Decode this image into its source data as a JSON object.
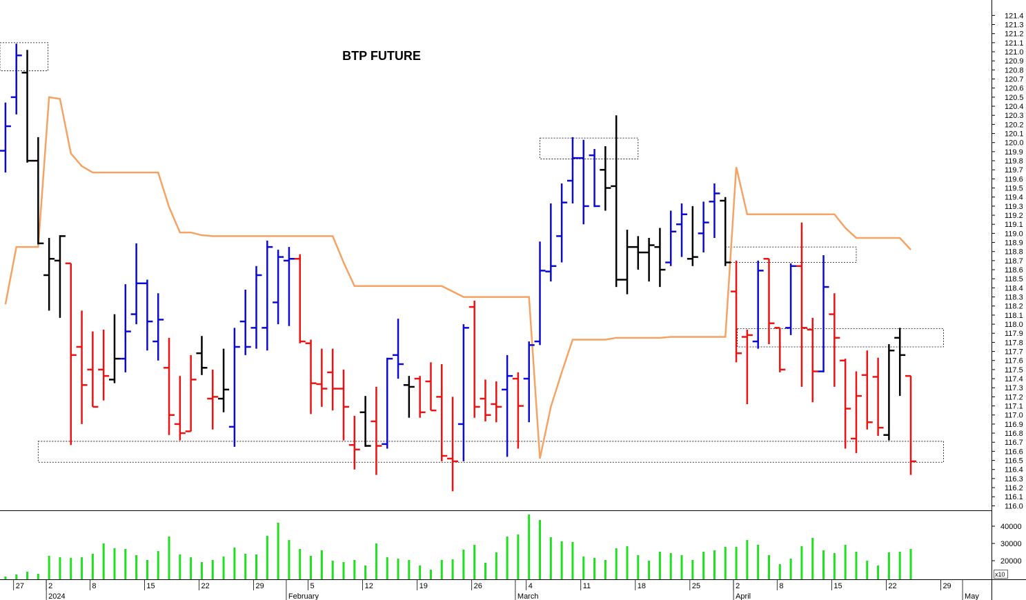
{
  "chart_data": [
    {
      "type": "ohlc",
      "title": "BTP FUTURE",
      "xlim": [
        -0.5,
        90.4
      ],
      "ylim": [
        115.95,
        121.57
      ],
      "yticks": [
        {
          "value": 116,
          "label": "116.0"
        },
        116.1,
        116.2,
        116.3,
        116.4,
        116.5,
        116.6,
        116.7,
        116.8,
        116.9,
        {
          "value": 117,
          "label": "117.0"
        },
        117.1,
        117.2,
        117.3,
        117.4,
        117.5,
        117.6,
        117.7,
        117.8,
        117.9,
        {
          "value": 118,
          "label": "118.0"
        },
        118.1,
        118.2,
        118.3,
        118.4,
        118.5,
        118.6,
        118.7,
        118.8,
        118.9,
        {
          "value": 119,
          "label": "119.0"
        },
        119.1,
        119.2,
        119.3,
        119.4,
        119.5,
        119.6,
        119.7,
        119.8,
        119.9,
        {
          "value": 120,
          "label": "120.0"
        },
        120.1,
        120.2,
        120.3,
        120.4,
        120.5,
        120.6,
        120.7,
        120.8,
        120.9,
        {
          "value": 121,
          "label": "121.0"
        },
        121.1,
        121.2,
        121.3,
        121.4
      ],
      "open": [
        119.91,
        120.5,
        120.77,
        119.8,
        118.54,
        118.7,
        118.67,
        117.75,
        117.5,
        117.5,
        117.39,
        117.62,
        118.11,
        118.45,
        117.81,
        117.52,
        116.9,
        116.82,
        117.68,
        117.18,
        117.18,
        116.87,
        118.03,
        117.96,
        117.96,
        118.24,
        118.7,
        118.72,
        117.79,
        117.34,
        117.47,
        117.29,
        116.67,
        117.03,
        116.93,
        116.68,
        117.66,
        117.33,
        117.4,
        117.37,
        117.2,
        116.52,
        116.9,
        118.19,
        117.18,
        117.12,
        117.28,
        117.4,
        117.4,
        117.81,
        118.58,
        118.97,
        119.58,
        119.83,
        119.86,
        119.7,
        119.52,
        118.49,
        118.85,
        118.79,
        118.85,
        118.68,
        119.1,
        118.72,
        119.0,
        119.35,
        119.36,
        118.36,
        117.86,
        117.81,
        118.72,
        117.96,
        117.96,
        118.64,
        117.94,
        117.48,
        118.11,
        117.6,
        116.74,
        117.44,
        117.42,
        116.78,
        117.85,
        117.43
      ],
      "high": [
        120.44,
        121.09,
        121.02,
        120.06,
        118.95,
        118.98,
        118.67,
        118.15,
        117.92,
        117.94,
        118.11,
        118.44,
        118.89,
        118.49,
        118.34,
        117.85,
        117.43,
        117.66,
        117.87,
        117.5,
        117.73,
        117.96,
        118.38,
        118.64,
        118.92,
        118.82,
        118.85,
        118.77,
        117.83,
        117.73,
        117.73,
        117.5,
        116.99,
        117.21,
        117.31,
        117.63,
        118.06,
        117.43,
        117.43,
        117.58,
        117.56,
        117.2,
        118.0,
        118.26,
        117.39,
        117.37,
        117.66,
        117.47,
        117.81,
        118.91,
        119.33,
        119.55,
        120.06,
        120.03,
        119.93,
        119.96,
        120.3,
        119.04,
        118.97,
        118.95,
        119.06,
        119.25,
        119.33,
        119.3,
        119.35,
        119.55,
        119.4,
        118.7,
        117.94,
        118.7,
        118.72,
        117.96,
        118.67,
        119.12,
        118.07,
        118.76,
        118.34,
        117.62,
        117.48,
        117.71,
        117.63,
        117.78,
        117.96,
        117.43
      ],
      "low": [
        119.67,
        120.31,
        119.78,
        118.88,
        118.15,
        118.07,
        116.67,
        116.9,
        117.09,
        117.16,
        117.35,
        117.47,
        118.0,
        117.71,
        117.6,
        116.78,
        116.72,
        116.82,
        117.44,
        116.84,
        117.03,
        116.65,
        117.66,
        117.73,
        117.71,
        118.0,
        117.98,
        117.79,
        117.01,
        117.09,
        117.05,
        116.72,
        116.4,
        116.65,
        116.34,
        116.63,
        117.4,
        116.97,
        116.97,
        117.05,
        116.49,
        116.16,
        116.49,
        116.97,
        116.93,
        116.92,
        116.54,
        116.63,
        116.92,
        117.77,
        118.47,
        118.68,
        119.33,
        119.1,
        119.29,
        119.25,
        118.41,
        118.33,
        118.6,
        118.47,
        118.41,
        118.64,
        118.74,
        118.64,
        118.79,
        118.95,
        118.64,
        117.58,
        117.12,
        117.73,
        117.78,
        117.47,
        117.88,
        117.31,
        117.14,
        117.47,
        117.31,
        116.63,
        116.58,
        116.84,
        116.77,
        116.72,
        117.21,
        116.34
      ],
      "close": [
        120.18,
        120.96,
        119.8,
        118.89,
        118.72,
        118.97,
        117.66,
        117.33,
        117.09,
        117.43,
        117.62,
        117.92,
        118.45,
        118.03,
        118.05,
        117.0,
        116.8,
        117.39,
        117.52,
        117.2,
        117.28,
        117.75,
        117.75,
        118.54,
        118.85,
        118.74,
        118.72,
        117.81,
        117.35,
        117.29,
        117.29,
        117.09,
        116.62,
        116.66,
        116.66,
        117.62,
        117.56,
        117.31,
        117.03,
        117.05,
        116.55,
        116.49,
        117.96,
        117.09,
        117.0,
        117.09,
        117.43,
        117.1,
        117.77,
        118.59,
        118.64,
        119.34,
        119.83,
        119.3,
        119.3,
        119.5,
        118.49,
        118.85,
        118.79,
        118.87,
        118.6,
        119.02,
        119.21,
        118.74,
        119.12,
        119.44,
        118.68,
        117.68,
        117.88,
        118.59,
        118.01,
        117.5,
        118.64,
        117.96,
        117.48,
        118.41,
        117.85,
        117.07,
        117.21,
        116.92,
        116.86,
        117.71,
        117.66,
        116.49
      ],
      "colors": [
        "#0a0ad2",
        "#0a0ad2",
        "#000000",
        "#000000",
        "#000000",
        "#000000",
        "#ee1111",
        "#ee1111",
        "#ee1111",
        "#ee1111",
        "#000000",
        "#0a0ad2",
        "#0a0ad2",
        "#0a0ad2",
        "#0a0ad2",
        "#ee1111",
        "#ee1111",
        "#ee1111",
        "#000000",
        "#ee1111",
        "#000000",
        "#0a0ad2",
        "#0a0ad2",
        "#0a0ad2",
        "#0a0ad2",
        "#0a0ad2",
        "#0a0ad2",
        "#ee1111",
        "#ee1111",
        "#ee1111",
        "#ee1111",
        "#ee1111",
        "#ee1111",
        "#000000",
        "#ee1111",
        "#0a0ad2",
        "#0a0ad2",
        "#000000",
        "#ee1111",
        "#ee1111",
        "#ee1111",
        "#ee1111",
        "#0a0ad2",
        "#ee1111",
        "#ee1111",
        "#ee1111",
        "#0a0ad2",
        "#ee1111",
        "#0a0ad2",
        "#0a0ad2",
        "#0a0ad2",
        "#0a0ad2",
        "#0a0ad2",
        "#0a0ad2",
        "#0a0ad2",
        "#000000",
        "#000000",
        "#000000",
        "#000000",
        "#000000",
        "#000000",
        "#0a0ad2",
        "#0a0ad2",
        "#000000",
        "#0a0ad2",
        "#0a0ad2",
        "#000000",
        "#ee1111",
        "#ee1111",
        "#0a0ad2",
        "#ee1111",
        "#ee1111",
        "#0a0ad2",
        "#ee1111",
        "#ee1111",
        "#0a0ad2",
        "#ee1111",
        "#ee1111",
        "#ee1111",
        "#ee1111",
        "#ee1111",
        "#000000",
        "#000000",
        "#ee1111"
      ],
      "line": {
        "color": "#f6a263",
        "values": [
          118.22,
          118.85,
          118.85,
          118.85,
          120.5,
          120.48,
          119.88,
          119.74,
          119.67,
          119.67,
          119.67,
          119.67,
          119.67,
          119.67,
          119.67,
          119.29,
          119.01,
          119.01,
          118.98,
          118.97,
          118.97,
          118.97,
          118.97,
          118.97,
          118.97,
          118.97,
          118.97,
          118.97,
          118.97,
          118.97,
          118.97,
          118.68,
          118.42,
          118.42,
          118.42,
          118.42,
          118.42,
          118.42,
          118.42,
          118.42,
          118.42,
          118.36,
          118.3,
          118.3,
          118.3,
          118.3,
          118.3,
          118.3,
          118.3,
          116.52,
          117.09,
          117.47,
          117.83,
          117.83,
          117.83,
          117.83,
          117.85,
          117.85,
          117.85,
          117.85,
          117.85,
          117.86,
          117.86,
          117.86,
          117.86,
          117.86,
          117.86,
          119.73,
          119.21,
          119.21,
          119.21,
          119.21,
          119.21,
          119.21,
          119.21,
          119.21,
          119.21,
          119.06,
          118.95,
          118.95,
          118.95,
          118.95,
          118.95,
          118.82
        ]
      },
      "zones": [
        {
          "from": -0.5,
          "to": 3.9,
          "low": 120.79,
          "high": 121.1
        },
        {
          "from": 49,
          "to": 58,
          "low": 119.82,
          "high": 120.05
        },
        {
          "from": 3,
          "to": 86,
          "low": 116.48,
          "high": 116.71
        },
        {
          "from": 66,
          "to": 78,
          "low": 118.68,
          "high": 118.85
        },
        {
          "from": 67.1,
          "to": 86,
          "low": 117.75,
          "high": 117.95
        }
      ]
    },
    {
      "type": "bar",
      "color": "#1fe01f",
      "y_label": "x10",
      "xlim": [
        -0.5,
        90.4
      ],
      "ylim": [
        9200,
        48400
      ],
      "yticks": [
        20000,
        30000,
        40000
      ],
      "values": [
        10800,
        12000,
        13600,
        12400,
        22800,
        22000,
        21600,
        22000,
        24000,
        30000,
        27200,
        26800,
        23200,
        20400,
        25600,
        34000,
        23600,
        22000,
        19200,
        20400,
        22400,
        27600,
        24000,
        23600,
        34400,
        42000,
        32000,
        26800,
        22800,
        26000,
        20000,
        19200,
        20400,
        17200,
        30000,
        22000,
        21200,
        20400,
        17200,
        14800,
        20400,
        20800,
        26400,
        29200,
        18800,
        24800,
        34000,
        35200,
        46800,
        43600,
        33600,
        31200,
        30800,
        22400,
        21600,
        20400,
        27200,
        28400,
        23200,
        20000,
        25200,
        24400,
        23200,
        20400,
        25200,
        26000,
        28000,
        28000,
        32000,
        29200,
        23200,
        18000,
        21200,
        28400,
        33200,
        26000,
        24400,
        29200,
        25200,
        20000,
        17200,
        24800,
        25200,
        26800
      ],
      "xticks": [
        {
          "value": 1,
          "label": "27"
        },
        {
          "value": 4,
          "label": "2"
        },
        {
          "value": 8,
          "label": "8"
        },
        {
          "value": 13,
          "label": "15"
        },
        {
          "value": 18,
          "label": "22"
        },
        {
          "value": 23,
          "label": "29"
        },
        {
          "value": 28,
          "label": "5"
        },
        {
          "value": 33,
          "label": "12"
        },
        {
          "value": 38,
          "label": "19"
        },
        {
          "value": 43,
          "label": "26"
        },
        {
          "value": 48,
          "label": "4"
        },
        {
          "value": 53,
          "label": "11"
        },
        {
          "value": 58,
          "label": "18"
        },
        {
          "value": 63,
          "label": "25"
        },
        {
          "value": 67,
          "label": "2"
        },
        {
          "value": 71,
          "label": "8"
        },
        {
          "value": 76,
          "label": "15"
        },
        {
          "value": 81,
          "label": "22"
        },
        {
          "value": 86,
          "label": "29"
        }
      ],
      "month_ticks": [
        {
          "value": 4,
          "label": "2024"
        },
        {
          "value": 26,
          "label": "February"
        },
        {
          "value": 47,
          "label": "March"
        },
        {
          "value": 67,
          "label": "April"
        },
        {
          "value": 88,
          "label": "May"
        }
      ]
    }
  ]
}
